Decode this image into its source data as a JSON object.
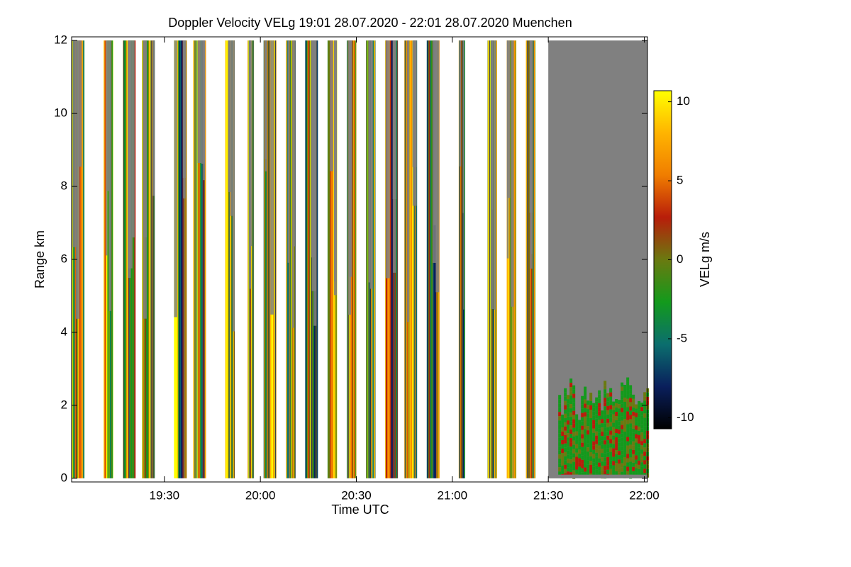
{
  "chart_data": {
    "type": "time-height",
    "title": "Doppler Velocity VELg   19:01 28.07.2020 - 22:01 28.07.2020 Muenchen",
    "x_label": "Time UTC",
    "y_label": "Range km",
    "xlim": [
      "19:01",
      "22:01"
    ],
    "xticks": [
      "19:30",
      "20:00",
      "20:30",
      "21:00",
      "21:30",
      "22:00"
    ],
    "ylim": [
      -0.1,
      12.1
    ],
    "yticks": [
      0,
      2,
      4,
      6,
      8,
      10,
      12
    ],
    "scans": [
      {
        "start": "19:01",
        "end": "19:05"
      },
      {
        "start": "19:11",
        "end": "19:14"
      },
      {
        "start": "19:17",
        "end": "19:21"
      },
      {
        "start": "19:23",
        "end": "19:27"
      },
      {
        "start": "19:33",
        "end": "19:37"
      },
      {
        "start": "19:39",
        "end": "19:43"
      },
      {
        "start": "19:49",
        "end": "19:52"
      },
      {
        "start": "19:56",
        "end": "19:58"
      },
      {
        "start": "20:01",
        "end": "20:05"
      },
      {
        "start": "20:08",
        "end": "20:11"
      },
      {
        "start": "20:14",
        "end": "20:18"
      },
      {
        "start": "20:21",
        "end": "20:24"
      },
      {
        "start": "20:27",
        "end": "20:30"
      },
      {
        "start": "20:33",
        "end": "20:36"
      },
      {
        "start": "20:39",
        "end": "20:43"
      },
      {
        "start": "20:45",
        "end": "20:49"
      },
      {
        "start": "20:52",
        "end": "20:56"
      },
      {
        "start": "21:02",
        "end": "21:04"
      },
      {
        "start": "21:11",
        "end": "21:14"
      },
      {
        "start": "21:17",
        "end": "21:20"
      },
      {
        "start": "21:23",
        "end": "21:26"
      },
      {
        "start": "21:30",
        "end": "22:01"
      }
    ],
    "colorbar": {
      "label": "VELg m/s",
      "clim": [
        -10.7,
        10.7
      ],
      "ticks": [
        -10,
        -5,
        0,
        5,
        10
      ],
      "colors": [
        "#000000",
        "#0a1f5c",
        "#0b6e6e",
        "#139a1c",
        "#6a7a10",
        "#b81d0a",
        "#f07d00",
        "#ffb400",
        "#ffff00"
      ]
    },
    "no_signal_color": "#808080"
  }
}
